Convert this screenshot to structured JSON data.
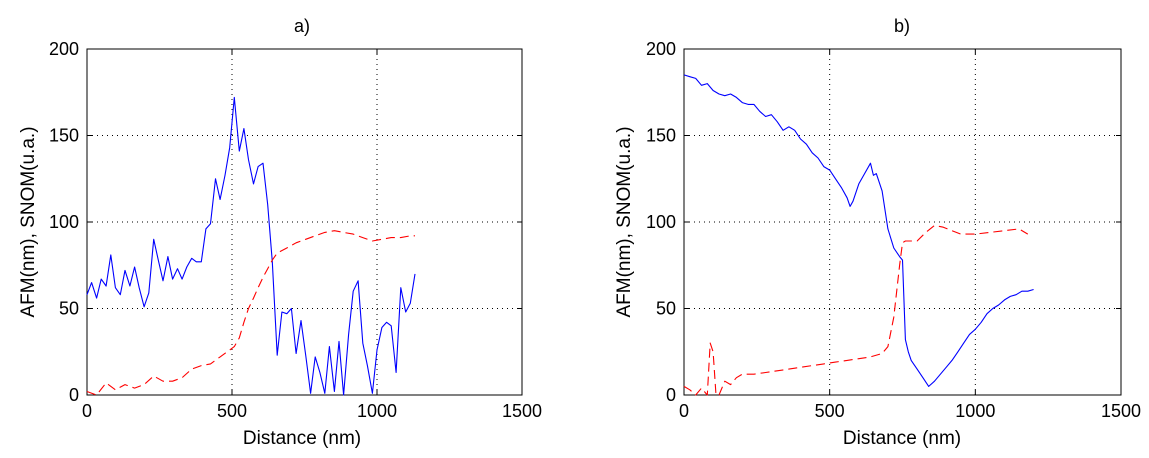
{
  "chart_data": [
    {
      "type": "line",
      "title": "a)",
      "xlabel": "Distance (nm)",
      "ylabel": "AFM(nm), SNOM(u.a.)",
      "xlim": [
        0,
        1500
      ],
      "ylim": [
        0,
        200
      ],
      "xticks": [
        0,
        500,
        1000,
        1500
      ],
      "yticks": [
        0,
        50,
        100,
        150,
        200
      ],
      "xtick_labels": [
        "0",
        "500",
        "1000",
        "1500"
      ],
      "ytick_labels": [
        "0",
        "50",
        "100",
        "150",
        "200"
      ],
      "grid": true,
      "series": [
        {
          "style": "solid",
          "color": "#0000ff",
          "x": [
            0,
            16,
            33,
            49,
            66,
            82,
            98,
            115,
            131,
            148,
            164,
            180,
            197,
            213,
            230,
            246,
            262,
            279,
            295,
            312,
            328,
            344,
            361,
            377,
            394,
            410,
            426,
            443,
            459,
            476,
            492,
            508,
            525,
            541,
            557,
            574,
            590,
            607,
            623,
            639,
            656,
            672,
            689,
            705,
            721,
            738,
            754,
            771,
            787,
            803,
            820,
            836,
            853,
            869,
            885,
            902,
            918,
            935,
            951,
            967,
            984,
            1000,
            1017,
            1033,
            1049,
            1066,
            1082,
            1099,
            1115,
            1131
          ],
          "y": [
            58,
            65,
            56,
            67,
            63,
            81,
            62,
            58,
            72,
            63,
            74,
            62,
            51,
            59,
            90,
            78,
            66,
            80,
            67,
            73,
            67,
            74,
            79,
            77,
            77,
            96,
            99,
            125,
            113,
            127,
            143,
            172,
            141,
            154,
            136,
            122,
            132,
            134,
            110,
            77,
            23,
            48,
            47,
            50,
            24,
            43,
            23,
            1,
            22,
            13,
            1,
            28,
            2,
            31,
            0,
            35,
            60,
            66,
            30,
            17,
            1,
            26,
            39,
            42,
            40,
            13,
            62,
            48,
            53,
            70
          ]
        },
        {
          "style": "dashed",
          "color": "#ff0000",
          "x": [
            0,
            33,
            66,
            98,
            131,
            164,
            197,
            230,
            262,
            295,
            328,
            361,
            394,
            426,
            459,
            492,
            508,
            525,
            541,
            557,
            574,
            590,
            607,
            623,
            639,
            656,
            689,
            721,
            754,
            787,
            820,
            853,
            885,
            918,
            951,
            984,
            1017,
            1049,
            1082,
            1115,
            1131
          ],
          "y": [
            2,
            0,
            7,
            3,
            6,
            4,
            6,
            11,
            8,
            8,
            10,
            15,
            17,
            18,
            22,
            26,
            28,
            33,
            42,
            50,
            56,
            62,
            68,
            73,
            78,
            82,
            85,
            88,
            90,
            92,
            94,
            95,
            94,
            93,
            91,
            89,
            90,
            91,
            91,
            92,
            92
          ]
        }
      ]
    },
    {
      "type": "line",
      "title": "b)",
      "xlabel": "Distance (nm)",
      "ylabel": "AFM(nm), SNOM(u.a.)",
      "xlim": [
        0,
        1500
      ],
      "ylim": [
        0,
        200
      ],
      "xticks": [
        0,
        500,
        1000,
        1500
      ],
      "yticks": [
        0,
        50,
        100,
        150,
        200
      ],
      "xtick_labels": [
        "0",
        "500",
        "1000",
        "1500"
      ],
      "ytick_labels": [
        "0",
        "50",
        "100",
        "150",
        "200"
      ],
      "grid": true,
      "series": [
        {
          "style": "solid",
          "color": "#0000ff",
          "x": [
            0,
            20,
            40,
            60,
            80,
            100,
            120,
            140,
            160,
            180,
            200,
            220,
            240,
            260,
            280,
            300,
            320,
            340,
            360,
            380,
            400,
            420,
            440,
            460,
            480,
            500,
            520,
            540,
            560,
            570,
            580,
            600,
            620,
            640,
            650,
            660,
            680,
            700,
            720,
            740,
            750,
            760,
            770,
            780,
            800,
            820,
            840,
            860,
            880,
            900,
            920,
            940,
            960,
            980,
            1000,
            1020,
            1040,
            1060,
            1080,
            1100,
            1120,
            1140,
            1160,
            1180,
            1200
          ],
          "y": [
            185,
            184,
            183,
            179,
            180,
            176,
            174,
            173,
            174,
            172,
            169,
            168,
            168,
            164,
            161,
            162,
            158,
            153,
            155,
            153,
            148,
            145,
            140,
            137,
            132,
            130,
            125,
            120,
            114,
            109,
            112,
            122,
            128,
            134,
            127,
            128,
            118,
            96,
            85,
            80,
            78,
            32,
            25,
            20,
            15,
            10,
            5,
            8,
            12,
            16,
            20,
            25,
            30,
            35,
            38,
            42,
            47,
            50,
            52,
            55,
            57,
            58,
            60,
            60,
            61
          ]
        },
        {
          "style": "dashed",
          "color": "#ff0000",
          "x": [
            0,
            20,
            40,
            60,
            80,
            90,
            100,
            110,
            120,
            140,
            160,
            180,
            200,
            240,
            280,
            320,
            360,
            400,
            440,
            480,
            520,
            560,
            600,
            640,
            680,
            700,
            720,
            740,
            750,
            760,
            800,
            830,
            860,
            890,
            920,
            950,
            1000,
            1050,
            1100,
            1150,
            1180
          ],
          "y": [
            5,
            3,
            0,
            4,
            0,
            30,
            25,
            0,
            0,
            8,
            6,
            10,
            12,
            12,
            13,
            14,
            15,
            16,
            17,
            18,
            19,
            20,
            21,
            22,
            24,
            28,
            45,
            75,
            88,
            89,
            89,
            94,
            98,
            97,
            95,
            93,
            93,
            94,
            95,
            96,
            93
          ]
        }
      ]
    }
  ]
}
